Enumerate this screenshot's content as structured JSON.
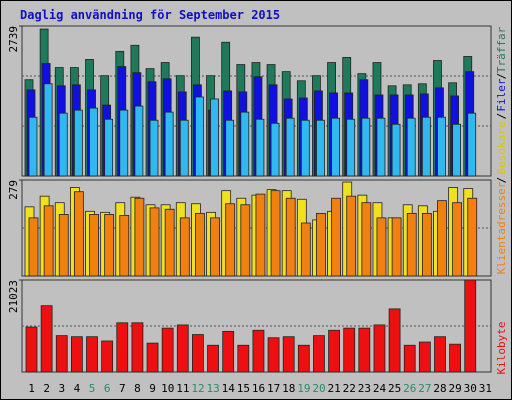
{
  "chart_data": [
    {
      "type": "bar",
      "title": "Daglig användning för September 2015",
      "categories": [
        "1",
        "2",
        "3",
        "4",
        "5",
        "6",
        "7",
        "8",
        "9",
        "10",
        "11",
        "12",
        "13",
        "14",
        "15",
        "16",
        "17",
        "18",
        "19",
        "20",
        "21",
        "22",
        "23",
        "24",
        "25",
        "26",
        "27",
        "28",
        "29",
        "30",
        "31"
      ],
      "category_colors": [
        "#000",
        "#000",
        "#000",
        "#000",
        "#2a8a6a",
        "#2a8a6a",
        "#000",
        "#000",
        "#000",
        "#000",
        "#000",
        "#2a8a6a",
        "#2a8a6a",
        "#000",
        "#000",
        "#000",
        "#000",
        "#000",
        "#2a8a6a",
        "#2a8a6a",
        "#000",
        "#000",
        "#000",
        "#000",
        "#000",
        "#2a8a6a",
        "#2a8a6a",
        "#000",
        "#000",
        "#000",
        "#000"
      ],
      "legend_separator": "/",
      "ylim": [
        0,
        2739
      ],
      "yticks": [
        2739
      ],
      "series": [
        {
          "name": "Träffar",
          "color": "#1e7a5a",
          "values": [
            1758,
            2683,
            1980,
            1980,
            2128,
            1832,
            2276,
            2387,
            1961,
            2072,
            1832,
            2535,
            1832,
            2442,
            2035,
            2072,
            2035,
            1906,
            1739,
            1832,
            2072,
            2165,
            1869,
            2072,
            1647,
            1665,
            1684,
            2109,
            1702,
            2183,
            null
          ]
        },
        {
          "name": "Filer",
          "color": "#1010e0",
          "values": [
            1573,
            2054,
            1647,
            1665,
            1573,
            1295,
            1998,
            1887,
            1721,
            1776,
            1536,
            1665,
            1203,
            1554,
            1536,
            1813,
            1665,
            1406,
            1425,
            1554,
            1517,
            1517,
            1758,
            1480,
            1480,
            1480,
            1499,
            1610,
            1462,
            1906,
            null
          ]
        },
        {
          "color": "#30b8f0",
          "values": [
            1073,
            1684,
            1147,
            1203,
            1240,
            1036,
            1203,
            1277,
            1018,
            1166,
            1018,
            1443,
            1406,
            1018,
            1166,
            1036,
            962,
            1055,
            1018,
            1018,
            1055,
            1036,
            1055,
            1055,
            944,
            1055,
            1073,
            1073,
            944,
            1147,
            null
          ]
        }
      ]
    },
    {
      "type": "bar",
      "ylim": [
        0,
        279
      ],
      "yticks": [
        279
      ],
      "series": [
        {
          "name": "Besökare",
          "color": "#f0e020",
          "values": [
            201,
            232,
            213,
            257,
            188,
            185,
            213,
            229,
            207,
            207,
            213,
            210,
            185,
            248,
            226,
            235,
            251,
            248,
            223,
            163,
            188,
            273,
            235,
            213,
            169,
            207,
            204,
            188,
            257,
            254,
            null
          ]
        },
        {
          "name": "Klientadresser",
          "color": "#f08010",
          "values": [
            169,
            204,
            179,
            245,
            179,
            179,
            176,
            226,
            198,
            194,
            169,
            182,
            169,
            210,
            207,
            238,
            248,
            226,
            154,
            182,
            226,
            232,
            213,
            169,
            169,
            182,
            182,
            219,
            213,
            226,
            null
          ]
        }
      ]
    },
    {
      "type": "bar",
      "ylim": [
        0,
        21023
      ],
      "yticks": [
        21023
      ],
      "series": [
        {
          "name": "Kilobyte",
          "color": "#ee1010",
          "values": [
            10269,
            15159,
            8313,
            8069,
            8069,
            7091,
            11247,
            11247,
            6602,
            10025,
            10758,
            8558,
            6113,
            9291,
            6113,
            9536,
            7824,
            8069,
            6113,
            8313,
            9536,
            10025,
            10025,
            10758,
            14426,
            6113,
            6846,
            8069,
            6357,
            21023,
            null
          ]
        }
      ]
    }
  ]
}
